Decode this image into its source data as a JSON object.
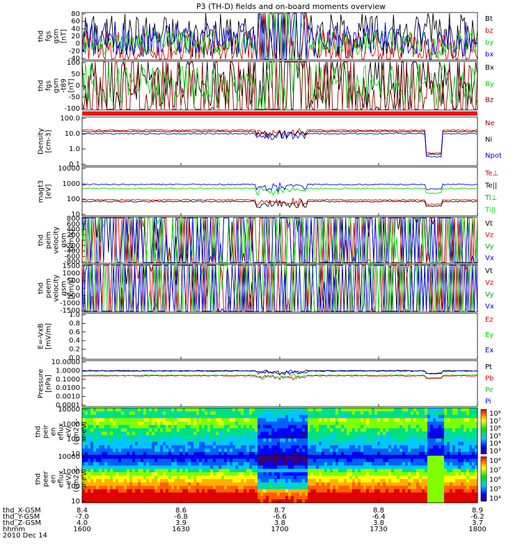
{
  "title": "P3 (TH-D) fields and on-board moments overview",
  "chart_data": {
    "type": "line",
    "title": "P3 (TH-D) fields and on-board moments overview",
    "x_tick_labels": [
      "1600",
      "1630",
      "1700",
      "1730",
      "1800"
    ],
    "footer": {
      "row_labels": [
        "thd_X-GSM",
        "thd_Y-GSM",
        "thd_Z-GSM",
        "hhmm",
        "2010 Dec 14"
      ],
      "x_gsm": [
        "8.4",
        "8.6",
        "8.7",
        "8.8",
        "8.9"
      ],
      "y_gsm": [
        "-7.0",
        "-6.8",
        "-6.6",
        "-6.4",
        "-6.2"
      ],
      "z_gsm": [
        "4.0",
        "3.9",
        "3.8",
        "3.8",
        "3.7"
      ]
    },
    "panels": [
      {
        "id": "fgs",
        "ylabel": [
          "thd",
          "fgs",
          "gsm",
          "[nT]"
        ],
        "ytick_labels": [
          "80",
          "60",
          "40",
          "20",
          "0",
          "-20",
          "-40"
        ],
        "legend": [
          {
            "text": "Bt",
            "color": "#000000"
          },
          {
            "text": "bz",
            "color": "#dd0000"
          },
          {
            "text": "by",
            "color": "#00dd00"
          },
          {
            "text": "bx",
            "color": "#0000dd"
          }
        ],
        "series": [
          {
            "name": "Bt",
            "color": "#000000",
            "base": 22
          },
          {
            "name": "bz",
            "color": "#dd0000",
            "base": -12
          },
          {
            "name": "by",
            "color": "#00dd00",
            "base": 3
          },
          {
            "name": "bx",
            "color": "#0000dd",
            "base": 12
          }
        ]
      },
      {
        "id": "fgs_t89",
        "ylabel": [
          "thd",
          "fgs",
          "gsm",
          "-t89",
          "[nT]"
        ],
        "ytick_labels": [
          "100",
          "50",
          "0",
          "-50",
          "-100"
        ],
        "legend": [
          {
            "text": "Bx",
            "color": "#000000"
          },
          {
            "text": "By",
            "color": "#00dd00"
          },
          {
            "text": "Bz",
            "color": "#8b0000"
          }
        ],
        "series": [
          {
            "name": "Bx",
            "color": "#000000",
            "base": 20
          },
          {
            "name": "By",
            "color": "#00dd00",
            "base": 5
          },
          {
            "name": "Bz",
            "color": "#8b0000",
            "base": -60
          }
        ]
      },
      {
        "id": "density",
        "ylabel": [
          "Density",
          "[cm-3]"
        ],
        "ytick_labels": [
          "100.0",
          "10.0",
          "1.0",
          "0.1"
        ],
        "legend": [
          {
            "text": "Ne",
            "color": "#aa0000"
          },
          {
            "text": "Ni",
            "color": "#000000"
          },
          {
            "text": "Npot",
            "color": "#0000dd"
          }
        ],
        "series": [
          {
            "name": "Ne",
            "color": "#dd0000",
            "base": 17
          },
          {
            "name": "Ni",
            "color": "#000000",
            "base": 14
          },
          {
            "name": "Npot",
            "color": "#0000dd",
            "base": 10
          }
        ]
      },
      {
        "id": "temp",
        "ylabel": [
          "magt3",
          "[eV]"
        ],
        "ytick_labels": [
          "10000",
          "1000",
          "100",
          "10"
        ],
        "legend": [
          {
            "text": "Te⊥",
            "color": "#dd0000"
          },
          {
            "text": "Te||",
            "color": "#000000"
          },
          {
            "text": "Ti⊥",
            "color": "#00aa00"
          },
          {
            "text": "Ti||",
            "color": "#00dd00"
          }
        ],
        "series": [
          {
            "name": "Te⊥",
            "color": "#dd0000",
            "base": 90
          },
          {
            "name": "Te||",
            "color": "#000000",
            "base": 70
          },
          {
            "name": "Ti⊥",
            "color": "#00dd00",
            "base": 500
          },
          {
            "name": "Ti||",
            "color": "#0000dd",
            "base": 900
          }
        ]
      },
      {
        "id": "peim",
        "ylabel": [
          "thd",
          "peim",
          "velocity",
          "gsm",
          "[km/s]"
        ],
        "ytick_labels": [
          "800",
          "600",
          "400",
          "200",
          "0",
          "-200",
          "-400",
          "-600",
          "-800"
        ],
        "legend": [
          {
            "text": "Vt",
            "color": "#000000"
          },
          {
            "text": "Vz",
            "color": "#dd0000"
          },
          {
            "text": "Vy",
            "color": "#00aa00"
          },
          {
            "text": "Vx",
            "color": "#0000dd"
          }
        ],
        "series": [
          {
            "name": "Vt",
            "color": "#000000",
            "base": 200
          },
          {
            "name": "Vz",
            "color": "#dd0000",
            "base": 60
          },
          {
            "name": "Vy",
            "color": "#00dd00",
            "base": -50
          },
          {
            "name": "Vx",
            "color": "#0000dd",
            "base": -160
          }
        ]
      },
      {
        "id": "peem",
        "ylabel": [
          "thd",
          "peem",
          "velocity",
          "gsm",
          "[km/s]"
        ],
        "ytick_labels": [
          "1500",
          "1000",
          "500",
          "0",
          "-500",
          "-1000",
          "-1500"
        ],
        "legend": [
          {
            "text": "Vt",
            "color": "#000000"
          },
          {
            "text": "Vz",
            "color": "#dd0000"
          },
          {
            "text": "Vy",
            "color": "#00aa00"
          },
          {
            "text": "Vx",
            "color": "#0000dd"
          }
        ],
        "series": [
          {
            "name": "Vt",
            "color": "#000000",
            "base": 300
          },
          {
            "name": "Vz",
            "color": "#dd0000",
            "base": 80
          },
          {
            "name": "Vy",
            "color": "#00dd00",
            "base": -40
          },
          {
            "name": "Vx",
            "color": "#0000dd",
            "base": -200
          }
        ]
      },
      {
        "id": "efield",
        "ylabel": [
          "E=-VxB",
          "[mV/m]"
        ],
        "ytick_labels": [
          "1.0",
          "0.8",
          "0.6",
          "0.4",
          "0.2",
          "0.0"
        ],
        "legend": [
          {
            "text": "Ez",
            "color": "#dd0000"
          },
          {
            "text": "Ey",
            "color": "#00dd00"
          },
          {
            "text": "Ex",
            "color": "#0000dd"
          }
        ],
        "series": []
      },
      {
        "id": "pressure",
        "ylabel": [
          "Pressure",
          "[nPa]"
        ],
        "ytick_labels": [
          "10.0000",
          "1.0000",
          "0.1000",
          "0.0100",
          "0.0010",
          "0.0001"
        ],
        "legend": [
          {
            "text": "Pt",
            "color": "#000000"
          },
          {
            "text": "Pb",
            "color": "#dd0000"
          },
          {
            "text": "Pe",
            "color": "#00dd00"
          },
          {
            "text": "Pi",
            "color": "#0000dd"
          }
        ],
        "series": [
          {
            "name": "Pt",
            "color": "#000000",
            "base": 1.0
          },
          {
            "name": "Pb",
            "color": "#dd0000",
            "base": 0.25
          },
          {
            "name": "Pe",
            "color": "#00dd00",
            "base": 0.3
          },
          {
            "name": "Pi",
            "color": "#0000dd",
            "base": 0.9
          }
        ]
      },
      {
        "id": "peir",
        "type": "heatmap",
        "ylabel": [
          "thd",
          "peir",
          "en",
          "eflux",
          "eV/",
          "(cm2-s-",
          "sr-eV)"
        ],
        "ytick_labels": [
          "10000",
          "1000",
          "100",
          "10"
        ],
        "colorbar_labels": [
          "10⁸",
          "10⁷",
          "10⁶",
          "10⁵",
          "10⁴",
          "10³"
        ]
      },
      {
        "id": "peer",
        "type": "heatmap",
        "ylabel": [
          "thd",
          "peer",
          "en",
          "eflux",
          "eV/",
          "(cm2-s-",
          "sr-eV)"
        ],
        "ytick_labels": [
          "10000",
          "1000",
          "100",
          "10"
        ],
        "colorbar_labels": [
          "10⁸",
          "10⁷",
          "10⁶",
          "10⁵",
          "10⁴"
        ]
      }
    ]
  }
}
